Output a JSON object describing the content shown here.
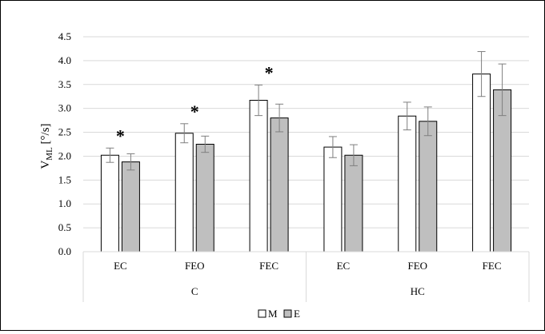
{
  "chart_data": {
    "type": "bar",
    "title": "",
    "ylabel": "V",
    "ylabel_subscript": "ML",
    "ylabel_unit": " [°/s]",
    "ylim": [
      0,
      4.5
    ],
    "yticks": [
      "0.0",
      "0.5",
      "1.0",
      "1.5",
      "2.0",
      "2.5",
      "3.0",
      "3.5",
      "4.0",
      "4.5"
    ],
    "grid": true,
    "groups": [
      {
        "name": "C",
        "categories": [
          "EC",
          "FEO",
          "FEC"
        ]
      },
      {
        "name": "HC",
        "categories": [
          "EC",
          "FEO",
          "FEC"
        ]
      }
    ],
    "categories": [
      "EC",
      "FEO",
      "FEC",
      "EC",
      "FEO",
      "FEC"
    ],
    "series": [
      {
        "name": "M",
        "values": [
          2.02,
          2.48,
          3.17,
          2.19,
          2.84,
          3.72
        ],
        "errors": [
          0.15,
          0.2,
          0.32,
          0.22,
          0.29,
          0.47
        ]
      },
      {
        "name": "E",
        "values": [
          1.88,
          2.25,
          2.8,
          2.02,
          2.73,
          3.39
        ],
        "errors": [
          0.17,
          0.17,
          0.29,
          0.22,
          0.3,
          0.54
        ]
      }
    ],
    "significance": [
      {
        "category_index": 0,
        "label": "*"
      },
      {
        "category_index": 1,
        "label": "*"
      },
      {
        "category_index": 2,
        "label": "*"
      }
    ],
    "legend_position": "bottom",
    "colors": {
      "M": "#ffffff",
      "E": "#bfbfbf",
      "error": "#7f7f7f",
      "grid": "#d9d9d9",
      "outline": "#000000"
    }
  }
}
